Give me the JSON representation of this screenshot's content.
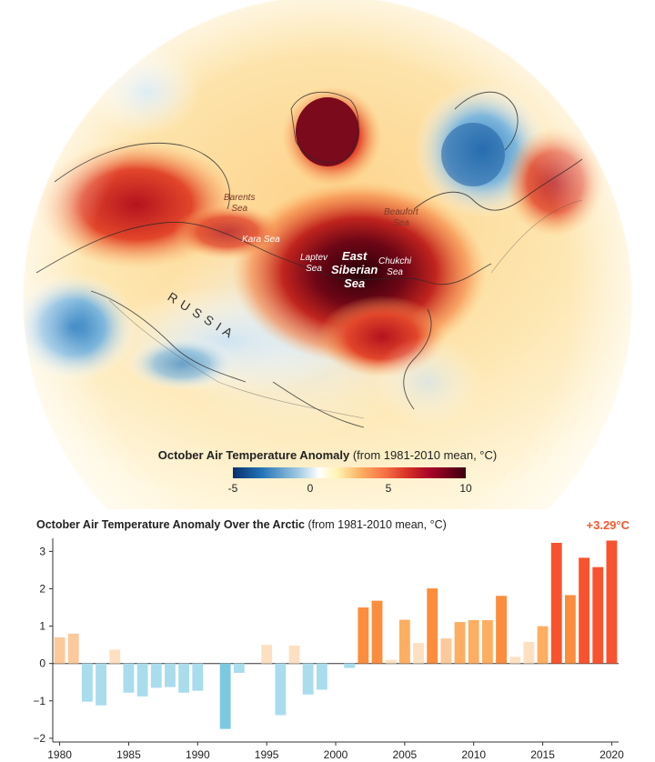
{
  "map": {
    "title_bold": "October Air Temperature Anomaly",
    "title_rest": "(from 1981-2010 mean, °C)",
    "colorbar_ticks": [
      "-5",
      "0",
      "5",
      "10"
    ],
    "labels": {
      "barents": "Barents\nSea",
      "kara": "Kara Sea",
      "laptev": "Laptev\nSea",
      "east_siberian": "East\nSiberian\nSea",
      "chukchi": "Chukchi\nSea",
      "beaufort": "Beaufort\nSea",
      "russia": "R U S S I A"
    },
    "colors": {
      "cold_dark": "#08306b",
      "cold": "#6baed6",
      "neutral": "#ffffff",
      "warm": "#fdae61",
      "hot": "#d73027",
      "hottest": "#3d0010"
    }
  },
  "chart_data": {
    "type": "bar",
    "title": "October Air Temperature Anomaly Over the Arctic",
    "subtitle": "(from 1981-2010 mean, °C)",
    "callout": "+3.29°C",
    "x": [
      1980,
      1981,
      1982,
      1983,
      1984,
      1985,
      1986,
      1987,
      1988,
      1989,
      1990,
      1991,
      1992,
      1993,
      1994,
      1995,
      1996,
      1997,
      1998,
      1999,
      2000,
      2001,
      2002,
      2003,
      2004,
      2005,
      2006,
      2007,
      2008,
      2009,
      2010,
      2011,
      2012,
      2013,
      2014,
      2015,
      2016,
      2017,
      2018,
      2019,
      2020
    ],
    "values": [
      0.7,
      0.8,
      -1.02,
      -1.12,
      0.37,
      -0.78,
      -0.88,
      -0.65,
      -0.63,
      -0.78,
      -0.73,
      0.0,
      -1.75,
      -0.25,
      0.0,
      0.5,
      -1.38,
      0.48,
      -0.83,
      -0.7,
      0.0,
      -0.12,
      1.5,
      1.68,
      0.1,
      1.17,
      0.55,
      2.01,
      0.67,
      1.11,
      1.16,
      1.16,
      1.81,
      0.18,
      0.58,
      1.0,
      3.23,
      1.83,
      2.83,
      2.58,
      3.29
    ],
    "x_ticks": [
      1980,
      1985,
      1990,
      1995,
      2000,
      2005,
      2010,
      2015,
      2020
    ],
    "y_ticks": [
      -2,
      -1,
      0,
      1,
      2,
      3
    ],
    "ylim": [
      -2.1,
      3.35
    ],
    "colors": {
      "cold": "#a9dced",
      "cold_strong": "#7ec8df",
      "warm_light": "#fde0c2",
      "warm": "#fbc99a",
      "warmer": "#fdae61",
      "hot": "#fb8d3d",
      "hottest": "#f8532e"
    }
  }
}
